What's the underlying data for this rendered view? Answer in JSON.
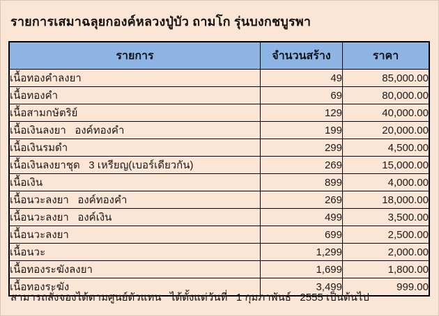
{
  "page": {
    "title": "รายการเสมาฉลุยกองค์หลวงปู่บัว ถามโก รุ่นบงกชบูรพา",
    "footer_note": "สามารถสั่งจองได้ตามศูนย์ตัวแทน   ได้ตั้งแต่วันที่   1 กุมภาพันธ์   2555 เป็นต้นไป",
    "colors": {
      "page_background": "#fbe5d5",
      "table_header_fill": "#8db4e2",
      "table_border": "#000000",
      "text": "#141414"
    }
  },
  "table": {
    "headers": [
      "รายการ",
      "จำนวนสร้าง",
      "ราคา"
    ],
    "rows": [
      {
        "item": "เนื้อทองคำลงยา",
        "quantity": "49",
        "price": "85,000.00"
      },
      {
        "item": "เนื้อทองคำ",
        "quantity": "69",
        "price": "80,000.00"
      },
      {
        "item": "เนื้อสามกษัตริย์",
        "quantity": "129",
        "price": "40,000.00"
      },
      {
        "item": "เนื้อเงินลงยา   องค์ทองคำ",
        "quantity": "199",
        "price": "20,000.00"
      },
      {
        "item": "เนื้อเงินรมดำ",
        "quantity": "299",
        "price": "4,500.00"
      },
      {
        "item": "เนื้อเงินลงยาชุด   3 เหรียญ(เบอร์เดียวกัน)",
        "quantity": "269",
        "price": "15,000.00"
      },
      {
        "item": "เนื้อเงิน",
        "quantity": "899",
        "price": "4,000.00"
      },
      {
        "item": "เนื้อนวะลงยา   องค์ทองคำ",
        "quantity": "269",
        "price": "18,000.00"
      },
      {
        "item": "เนื้อนวะลงยา   องค์เงิน",
        "quantity": "499",
        "price": "3,500.00"
      },
      {
        "item": "เนื้อนวะลงยา",
        "quantity": "699",
        "price": "2,500.00"
      },
      {
        "item": "เนื้อนวะ",
        "quantity": "1,299",
        "price": "2,000.00"
      },
      {
        "item": "เนื้อทองระฆังลงยา",
        "quantity": "1,699",
        "price": "1,800.00"
      },
      {
        "item": "เนื้อทองระฆัง",
        "quantity": "3,499",
        "price": "999.00"
      }
    ]
  }
}
